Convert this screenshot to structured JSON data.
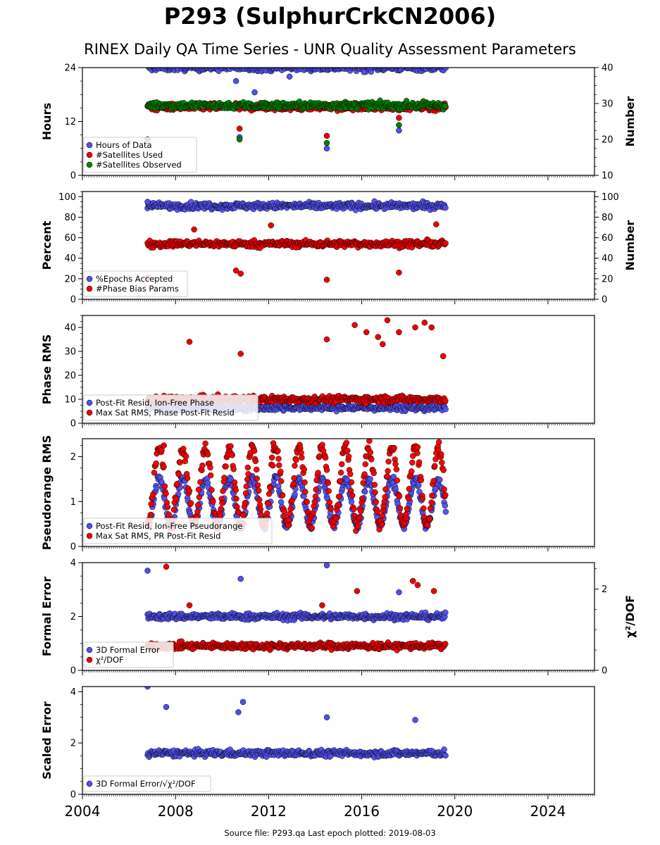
{
  "title": "P293 (SulphurCrkCN2006)",
  "subtitle": "RINEX Daily QA Time Series - UNR Quality Assessment Parameters",
  "footer": "Source file: P293.qa Last epoch plotted: 2019-08-03",
  "colors": {
    "blue": "#5050ee",
    "red": "#ee0000",
    "green": "#008000"
  },
  "chart_data": {
    "type": "scatter",
    "x_axis": {
      "range": [
        2004.0,
        2026.0
      ],
      "ticks": [
        2004,
        2008,
        2012,
        2016,
        2020,
        2024
      ]
    },
    "data_span": [
      2006.8,
      2019.6
    ],
    "panels": [
      {
        "ylabel": "Hours",
        "ylim": [
          0,
          24
        ],
        "yticks": [
          0,
          12,
          24
        ],
        "ylabel2": "Number",
        "ylim2": [
          10,
          40
        ],
        "yticks2": [
          10,
          20,
          30,
          40
        ],
        "series": [
          {
            "name": "Hours of Data",
            "color": "blue",
            "axis": "left",
            "typical": 24.0,
            "outliers": [
              [
                2006.8,
                8.0
              ],
              [
                2010.75,
                8.5
              ],
              [
                2010.6,
                21.0
              ],
              [
                2011.4,
                18.5
              ],
              [
                2012.9,
                22.0
              ],
              [
                2014.5,
                6.0
              ],
              [
                2016.1,
                23.0
              ],
              [
                2017.6,
                10.0
              ]
            ]
          },
          {
            "name": "#Satellites Used",
            "color": "red",
            "axis": "right",
            "typical": 29.0,
            "outliers": [
              [
                2006.8,
                20.0
              ],
              [
                2009.5,
                30.0
              ],
              [
                2010.75,
                23.0
              ],
              [
                2014.5,
                21.0
              ],
              [
                2017.6,
                26.0
              ]
            ]
          },
          {
            "name": "#Satellites Observed",
            "color": "green",
            "axis": "right",
            "typical": 29.5,
            "outliers": [
              [
                2006.8,
                20.0
              ],
              [
                2010.75,
                20.0
              ],
              [
                2014.5,
                19.0
              ],
              [
                2017.6,
                24.0
              ]
            ]
          }
        ]
      },
      {
        "ylabel": "Percent",
        "ylim": [
          0,
          105
        ],
        "yticks": [
          0,
          20,
          40,
          60,
          80,
          100
        ],
        "ylabel2": "Number",
        "ylim2": [
          0,
          105
        ],
        "yticks2": [
          0,
          20,
          40,
          60,
          80,
          100
        ],
        "series": [
          {
            "name": "%Epochs Accepted",
            "color": "blue",
            "axis": "left",
            "typical": 91.0,
            "outliers": [
              [
                2006.8,
                95.0
              ]
            ]
          },
          {
            "name": "#Phase Bias Params",
            "color": "red",
            "axis": "right",
            "typical": 54.0,
            "outliers": [
              [
                2006.8,
                21.0
              ],
              [
                2008.8,
                68.0
              ],
              [
                2010.6,
                28.0
              ],
              [
                2010.8,
                25.0
              ],
              [
                2012.1,
                72.0
              ],
              [
                2014.5,
                19.0
              ],
              [
                2017.6,
                26.0
              ],
              [
                2019.2,
                73.0
              ]
            ]
          }
        ]
      },
      {
        "ylabel": "Phase RMS",
        "ylim": [
          0,
          45
        ],
        "yticks": [
          0,
          10,
          20,
          30,
          40
        ],
        "series": [
          {
            "name": "Post-Fit Resid, Ion-Free Phase",
            "color": "blue",
            "axis": "left",
            "typical": 6.5,
            "outliers": []
          },
          {
            "name": "Max Sat RMS, Phase Post-Fit Resid",
            "color": "red",
            "axis": "left",
            "typical": 10.0,
            "outliers": [
              [
                2008.6,
                34.0
              ],
              [
                2010.8,
                29.0
              ],
              [
                2014.5,
                35.0
              ],
              [
                2015.7,
                41.0
              ],
              [
                2016.2,
                38.0
              ],
              [
                2016.7,
                36.0
              ],
              [
                2017.1,
                43.0
              ],
              [
                2017.6,
                38.0
              ],
              [
                2018.3,
                40.0
              ],
              [
                2018.7,
                42.0
              ],
              [
                2019.0,
                40.0
              ],
              [
                2019.5,
                28.0
              ],
              [
                2016.9,
                33.0
              ]
            ]
          }
        ]
      },
      {
        "ylabel": "Pseudorange RMS",
        "ylim": [
          0,
          2.4
        ],
        "yticks": [
          0,
          1,
          2
        ],
        "series": [
          {
            "name": "Post-Fit Resid, Ion-Free Pseudorange",
            "color": "blue",
            "axis": "left",
            "typical": 0.9,
            "seasonal": {
              "low": 0.45,
              "high": 1.5
            },
            "outliers": []
          },
          {
            "name": "Max Sat RMS, PR Post-Fit Resid",
            "color": "red",
            "axis": "left",
            "typical": 1.3,
            "seasonal": {
              "low": 0.5,
              "high": 2.2
            },
            "outliers": [
              [
                2012.2,
                2.3
              ],
              [
                2007.5,
                2.25
              ]
            ]
          }
        ]
      },
      {
        "ylabel": "Formal Error",
        "ylim": [
          0,
          4
        ],
        "yticks": [
          0,
          2,
          4
        ],
        "ylabel2": "χ²/DOF",
        "ylim2": [
          0,
          2.65
        ],
        "yticks2": [
          0,
          2
        ],
        "series": [
          {
            "name": "3D Formal Error",
            "color": "blue",
            "axis": "left",
            "typical": 2.0,
            "outliers": [
              [
                2006.8,
                3.7
              ],
              [
                2010.8,
                3.4
              ],
              [
                2014.5,
                3.9
              ],
              [
                2017.6,
                2.9
              ]
            ]
          },
          {
            "name": "χ²/DOF",
            "color": "red",
            "axis": "right",
            "typical": 0.6,
            "outliers": [
              [
                2007.6,
                2.55
              ],
              [
                2008.6,
                1.6
              ],
              [
                2014.3,
                1.6
              ],
              [
                2015.8,
                1.95
              ],
              [
                2018.2,
                2.2
              ],
              [
                2018.4,
                2.1
              ],
              [
                2019.1,
                1.95
              ]
            ]
          }
        ]
      },
      {
        "ylabel": "Scaled Error",
        "ylim": [
          0,
          4.2
        ],
        "yticks": [
          0,
          2,
          4
        ],
        "series": [
          {
            "name": "3D Formal Error/√χ²/DOF",
            "color": "blue",
            "axis": "left",
            "typical": 1.6,
            "outliers": [
              [
                2006.8,
                4.2
              ],
              [
                2007.6,
                3.4
              ],
              [
                2010.9,
                3.6
              ],
              [
                2010.7,
                3.2
              ],
              [
                2014.5,
                3.0
              ],
              [
                2018.3,
                2.9
              ]
            ]
          }
        ]
      }
    ]
  }
}
